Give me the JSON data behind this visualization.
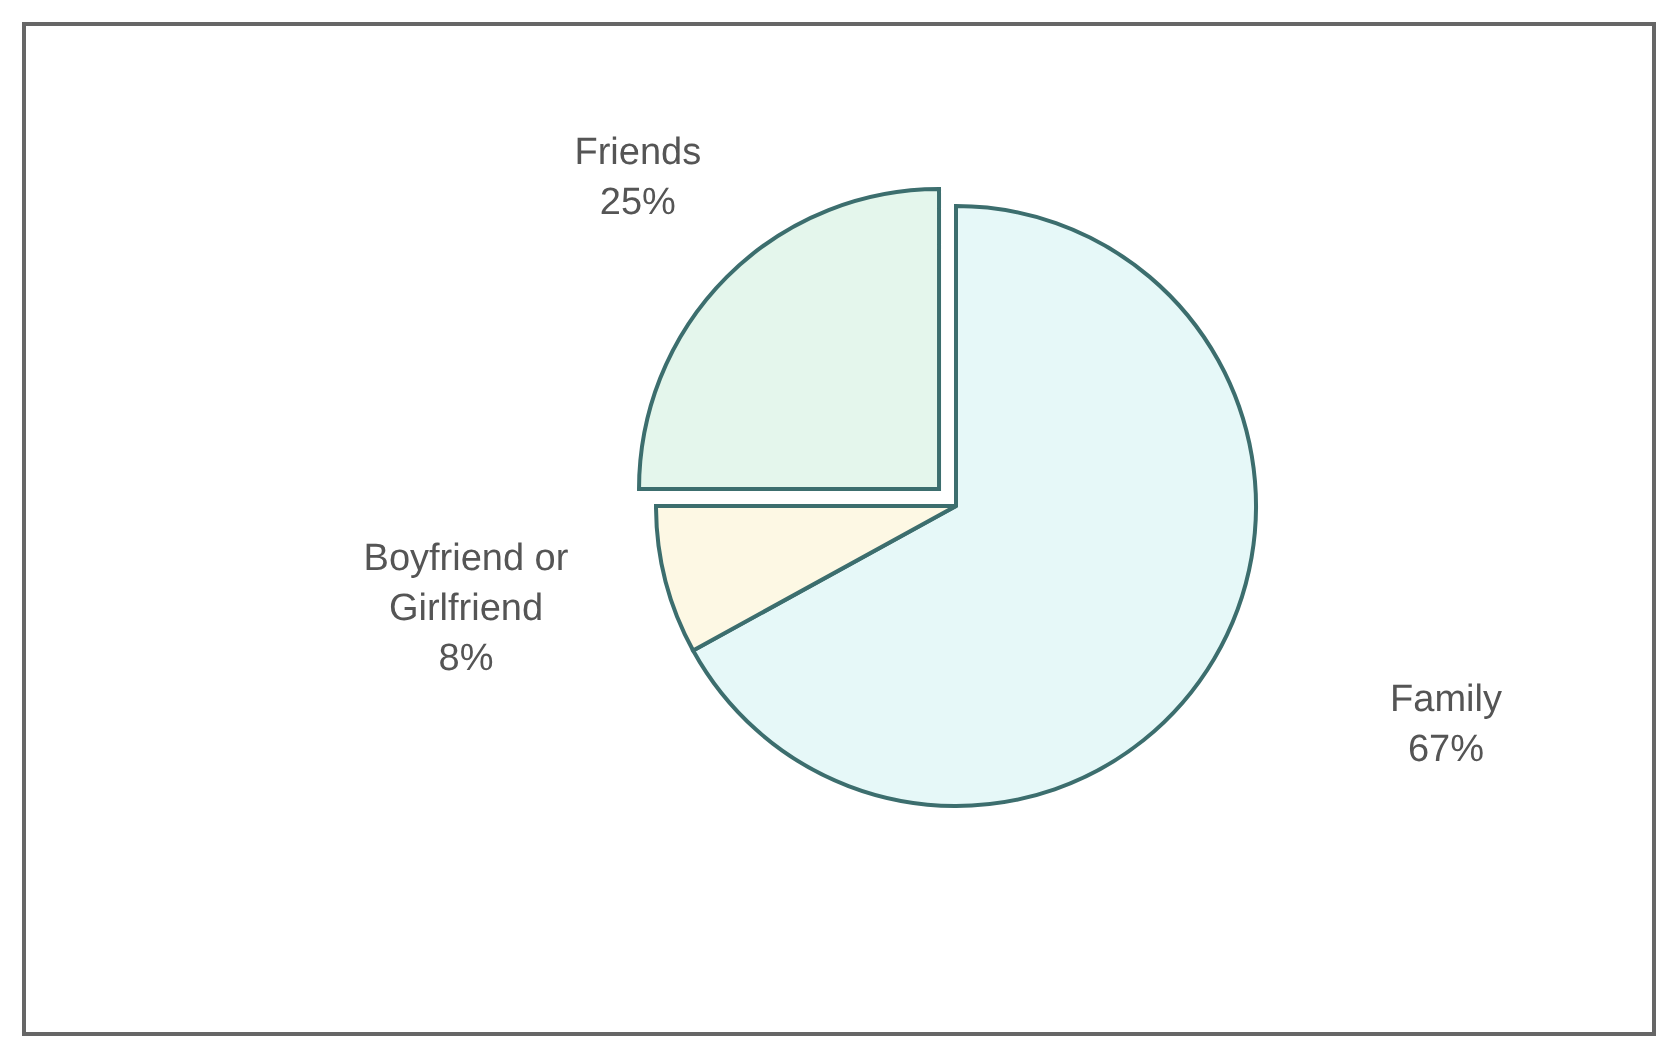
{
  "chart_data": {
    "type": "pie",
    "categories": [
      "Family",
      "Boyfriend or Girlfriend",
      "Friends"
    ],
    "values": [
      67,
      8,
      25
    ],
    "colors": [
      "#e6f8f8",
      "#fdf8e4",
      "#e4f6ec"
    ],
    "value_labels": [
      "67%",
      "8%",
      "25%"
    ]
  }
}
